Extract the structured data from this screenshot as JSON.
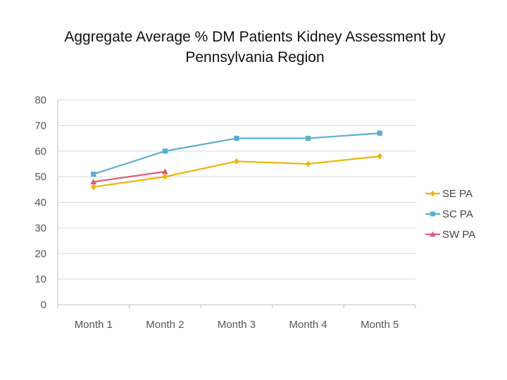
{
  "chart_data": {
    "type": "line",
    "title_line1": "Aggregate Average % DM Patients Kidney Assessment by",
    "title_line2": "Pennsylvania Region",
    "categories": [
      "Month 1",
      "Month 2",
      "Month 3",
      "Month 4",
      "Month 5"
    ],
    "ylim": [
      0,
      80
    ],
    "yticks": [
      0,
      10,
      20,
      30,
      40,
      50,
      60,
      70,
      80
    ],
    "grid": true,
    "legend_position": "right",
    "series": [
      {
        "name": "SE PA",
        "color": "#f0b400",
        "marker": "diamond",
        "values": [
          46,
          50,
          56,
          55,
          58
        ]
      },
      {
        "name": "SC PA",
        "color": "#5aaecd",
        "marker": "square",
        "values": [
          51,
          60,
          65,
          65,
          67
        ]
      },
      {
        "name": "SW PA",
        "color": "#d9607a",
        "marker": "triangle",
        "values": [
          48,
          52,
          null,
          null,
          null
        ]
      }
    ]
  }
}
